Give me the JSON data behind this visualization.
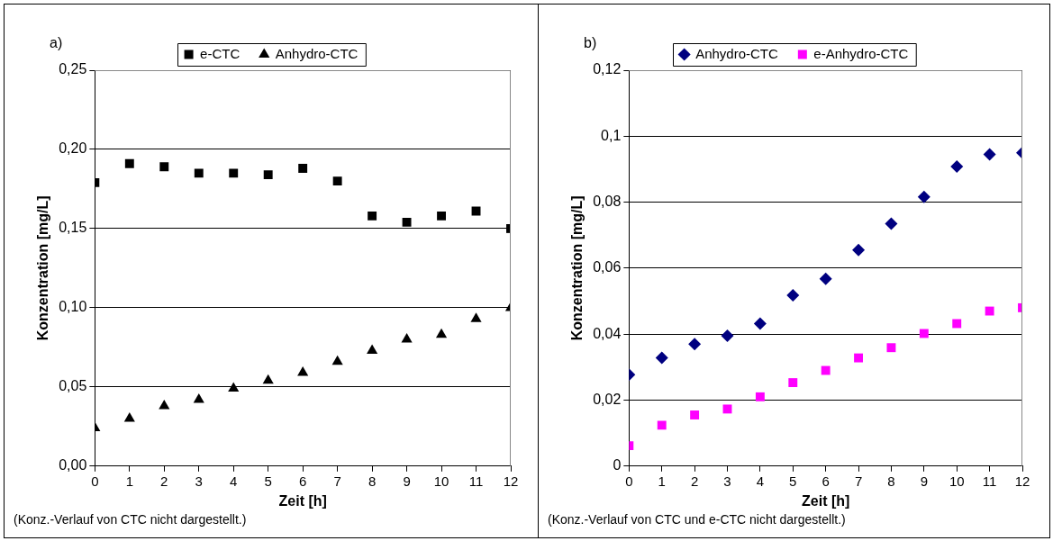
{
  "chart_data": [
    {
      "type": "scatter",
      "title": "a)",
      "xlabel": "Zeit [h]",
      "ylabel": "Konzentration [mg/L]",
      "x": [
        0,
        1,
        2,
        3,
        4,
        5,
        6,
        7,
        8,
        9,
        10,
        11,
        12
      ],
      "series": [
        {
          "name": "e-CTC",
          "color": "#000000",
          "marker": "square",
          "values": [
            0.179,
            0.191,
            0.189,
            0.185,
            0.185,
            0.184,
            0.188,
            0.18,
            0.158,
            0.154,
            0.158,
            0.161,
            0.15
          ]
        },
        {
          "name": "Anhydro-CTC",
          "color": "#000000",
          "marker": "triangle",
          "values": [
            0.024,
            0.03,
            0.038,
            0.042,
            0.049,
            0.054,
            0.059,
            0.066,
            0.073,
            0.08,
            0.083,
            0.093,
            0.1
          ]
        }
      ],
      "xlim": [
        0,
        12
      ],
      "xticks": [
        0,
        1,
        2,
        3,
        4,
        5,
        6,
        7,
        8,
        9,
        10,
        11,
        12
      ],
      "ylim": [
        0,
        0.25
      ],
      "yticks": [
        {
          "value": 0,
          "label": "0,00"
        },
        {
          "value": 0.05,
          "label": "0,05"
        },
        {
          "value": 0.1,
          "label": "0,10"
        },
        {
          "value": 0.15,
          "label": "0,15"
        },
        {
          "value": 0.2,
          "label": "0,20"
        },
        {
          "value": 0.25,
          "label": "0,25"
        }
      ],
      "grid": "y",
      "legend": "top",
      "annotations": [
        "(Konz.-Verlauf von CTC nicht dargestellt.)"
      ]
    },
    {
      "type": "scatter",
      "title": "b)",
      "xlabel": "Zeit [h]",
      "ylabel": "Konzentration [mg/L]",
      "x": [
        0,
        1,
        2,
        3,
        4,
        5,
        6,
        7,
        8,
        9,
        10,
        11,
        12
      ],
      "series": [
        {
          "name": "Anhydro-CTC",
          "color": "#000080",
          "marker": "diamond",
          "values": [
            0.0277,
            0.0328,
            0.037,
            0.0395,
            0.0432,
            0.0518,
            0.0568,
            0.0655,
            0.0735,
            0.0816,
            0.0908,
            0.0945,
            0.095
          ]
        },
        {
          "name": "e-Anhydro-CTC",
          "color": "#ff00ff",
          "marker": "square",
          "values": [
            0.0062,
            0.0124,
            0.0155,
            0.0173,
            0.021,
            0.0253,
            0.029,
            0.0328,
            0.0359,
            0.0402,
            0.0432,
            0.047,
            0.048
          ]
        }
      ],
      "xlim": [
        0,
        12
      ],
      "xticks": [
        0,
        1,
        2,
        3,
        4,
        5,
        6,
        7,
        8,
        9,
        10,
        11,
        12
      ],
      "ylim": [
        0,
        0.12
      ],
      "yticks": [
        {
          "value": 0,
          "label": "0"
        },
        {
          "value": 0.02,
          "label": "0,02"
        },
        {
          "value": 0.04,
          "label": "0,04"
        },
        {
          "value": 0.06,
          "label": "0,06"
        },
        {
          "value": 0.08,
          "label": "0,08"
        },
        {
          "value": 0.1,
          "label": "0,1"
        },
        {
          "value": 0.12,
          "label": "0,12"
        }
      ],
      "grid": "y",
      "legend": "top",
      "annotations": [
        "(Konz.-Verlauf von CTC und e-CTC nicht dargestellt.)"
      ]
    }
  ]
}
